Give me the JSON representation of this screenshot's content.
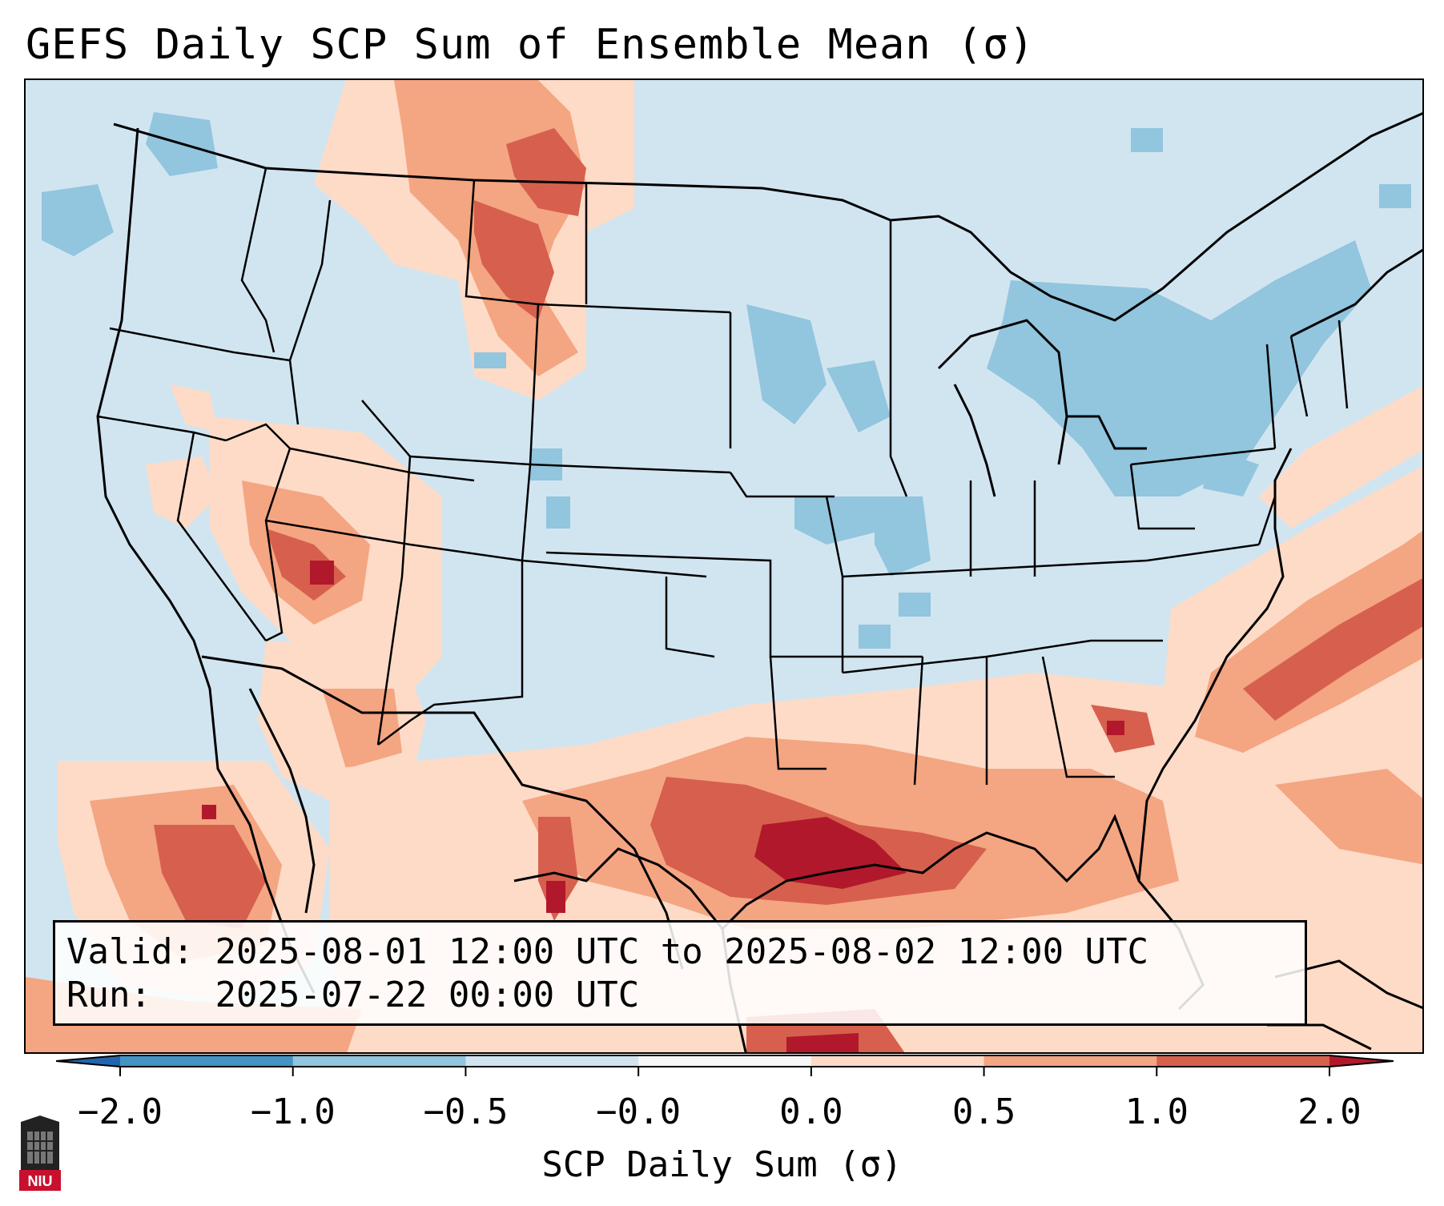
{
  "title": "GEFS Daily SCP Sum of Ensemble Mean (σ)",
  "info": {
    "valid_label": "Valid:",
    "valid_value": "2025-08-01 12:00 UTC to 2025-08-02 12:00 UTC",
    "run_label": "Run:",
    "run_value": "2025-07-22 00:00 UTC"
  },
  "colorbar": {
    "label": "SCP Daily Sum (σ)",
    "ticks": [
      "−2.0",
      "−1.0",
      "−0.5",
      "−0.0",
      "0.0",
      "0.5",
      "1.0",
      "2.0"
    ],
    "colors": [
      "#4393c3",
      "#92c5de",
      "#d1e5f0",
      "#f7f7f7",
      "#fddbc7",
      "#f4a582",
      "#d6604d",
      "#b2182b"
    ],
    "extend_min_color": "#2166ac",
    "extend_max_color": "#b2182b"
  },
  "logo": {
    "text": "NIU"
  }
}
